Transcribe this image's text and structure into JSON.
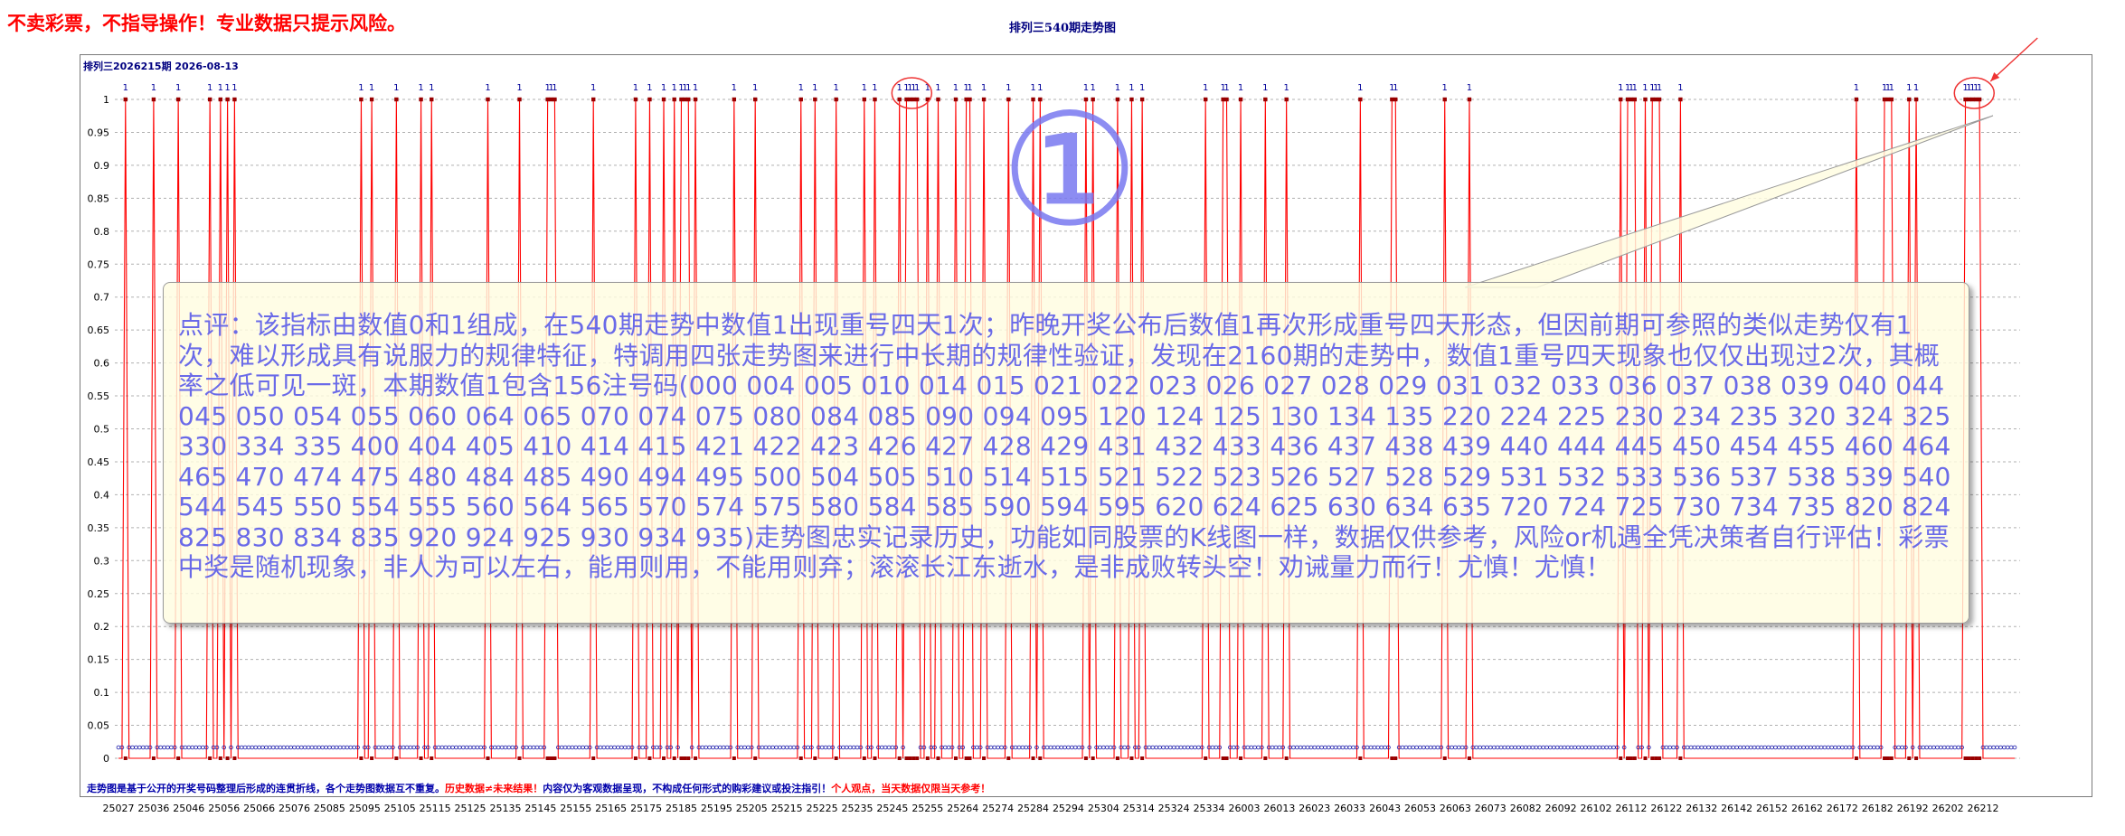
{
  "header": {
    "disclaimer": "不卖彩票，不指导操作！专业数据只提示风险。",
    "chart_title": "排列三540期走势图",
    "issue_label": "排列三2026215期 2026-08-13"
  },
  "annotation": {
    "circle_number": "①",
    "comment": "点评：该指标由数值0和1组成，在540期走势中数值1出现重号四天1次；昨晚开奖公布后数值1再次形成重号四天形态，但因前期可参照的类似走势仅有1次，难以形成具有说服力的规律特征，特调用四张走势图来进行中长期的规律性验证，发现在2160期的走势中，数值1重号四天现象也仅仅出现过2次，其概率之低可见一斑，本期数值1包含156注号码(000 004 005 010 014 015 021 022 023 026 027 028 029 031 032 033 036 037 038 039 040 044 045 050 054 055 060 064 065 070 074 075 080 084 085 090 094 095 120 124 125 130 134 135 220 224 225 230 234 235 320 324 325 330 334 335 400 404 405 410 414 415 421 422 423 426 427 428 429 431 432 433 436 437 438 439 440 444 445 450 454 455 460 464 465 470 474 475 480 484 485 490 494 495 500 504 505 510 514 515 521 522 523 526 527 528 529 531 532 533 536 537 538 539 540 544 545 550 554 555 560 564 565 570 574 575 580 584 585 590 594 595 620 624 625 630 634 635 720 724 725 730 734 735 820 824 825 830 834 835 920 924 925 930 934 935)走势图忠实记录历史，功能如同股票的K线图一样，数据仅供参考，风险or机遇全凭决策者自行评估！彩票中奖是随机现象，非人为可以左右，能用则用，不能用则弃；滚滚长江东逝水，是非成败转头空！劝诫量力而行！尤慎！尤慎！"
  },
  "footer": {
    "part1": "走势图是基于公开的开奖号码整理后形成的连贯折线，各个走势图数据互不重复。",
    "part2": "历史数据≠未来结果！",
    "part3": "内容仅为客观数据呈现，不构成任何形式的购彩建议或投注指引！",
    "part4": "个人观点，当天数据仅限当天参考！"
  },
  "colors": {
    "line": "#ff0000",
    "marker_one": "#990000",
    "marker_zero": "#1a1aaa",
    "label_one": "#000099",
    "annotation_text": "#6a6ae8",
    "highlight": "#ee3333",
    "disclaimer": "#ff0000"
  },
  "chart_data": {
    "type": "line",
    "title": "排列三540期走势图",
    "point_count": 540,
    "ylim": [
      0,
      1
    ],
    "y_ticks": [
      "0",
      "0.05",
      "0.1",
      "0.15",
      "0.2",
      "0.25",
      "0.3",
      "0.35",
      "0.4",
      "0.45",
      "0.5",
      "0.55",
      "0.6",
      "0.65",
      "0.7",
      "0.75",
      "0.8",
      "0.85",
      "0.9",
      "0.95",
      "1"
    ],
    "x_tick_labels": [
      "25027",
      "25036",
      "25046",
      "25056",
      "25066",
      "25076",
      "25085",
      "25095",
      "25105",
      "25115",
      "25125",
      "25135",
      "25145",
      "25155",
      "25165",
      "25175",
      "25185",
      "25195",
      "25205",
      "25215",
      "25225",
      "25235",
      "25245",
      "25255",
      "25264",
      "25274",
      "25284",
      "25294",
      "25304",
      "25314",
      "25324",
      "25334",
      "26003",
      "26013",
      "26023",
      "26033",
      "26043",
      "26053",
      "26063",
      "26073",
      "26082",
      "26092",
      "26102",
      "26112",
      "26122",
      "26132",
      "26142",
      "26152",
      "26162",
      "26172",
      "26182",
      "26192",
      "26202",
      "26212"
    ],
    "x_tick_step": 10,
    "grid": true,
    "peak_label": "1",
    "peak_indices": [
      2,
      10,
      17,
      26,
      29,
      31,
      33,
      69,
      72,
      79,
      86,
      89,
      105,
      114,
      122,
      123,
      124,
      135,
      147,
      151,
      155,
      158,
      160,
      161,
      162,
      164,
      175,
      181,
      194,
      198,
      204,
      212,
      215,
      222,
      224,
      225,
      226,
      227,
      230,
      233,
      238,
      241,
      242,
      246,
      253,
      260,
      262,
      275,
      277,
      284,
      288,
      291,
      309,
      314,
      315,
      319,
      326,
      332,
      353,
      362,
      363,
      377,
      384,
      427,
      429,
      430,
      431,
      434,
      436,
      437,
      438,
      444,
      494,
      502,
      503,
      504,
      509,
      511,
      525,
      526,
      527,
      528,
      529
    ],
    "highlighted_indices": [
      224,
      225,
      226,
      227,
      526,
      527,
      528,
      529
    ]
  }
}
